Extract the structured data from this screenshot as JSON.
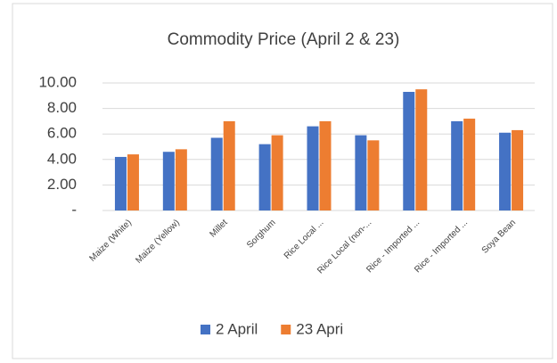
{
  "chart_data": {
    "type": "bar",
    "title": "Commodity Price (April 2 & 23)",
    "categories": [
      "Maize (White)",
      "Maize (Yellow)",
      "Millet",
      "Sorghum",
      "Rice Local ...",
      "Rice Local (non-...",
      "Rice - Imported ...",
      "Rice - Imported ...",
      "Soya Bean"
    ],
    "series": [
      {
        "name": "2 April",
        "color": "#4472c4",
        "values": [
          4.2,
          4.6,
          5.7,
          5.2,
          6.6,
          5.9,
          9.3,
          7.0,
          6.1
        ]
      },
      {
        "name": "23 Apri",
        "color": "#ed7d31",
        "values": [
          4.4,
          4.8,
          7.0,
          5.9,
          7.0,
          5.5,
          9.5,
          7.2,
          6.3
        ]
      }
    ],
    "ylim": [
      0,
      10
    ],
    "yticks": [
      {
        "value": 0,
        "label": "-"
      },
      {
        "value": 2,
        "label": "2.00"
      },
      {
        "value": 4,
        "label": "4.00"
      },
      {
        "value": 6,
        "label": "6.00"
      },
      {
        "value": 8,
        "label": "8.00"
      },
      {
        "value": 10,
        "label": "10.00"
      }
    ],
    "grid": true,
    "legend": "bottom"
  }
}
